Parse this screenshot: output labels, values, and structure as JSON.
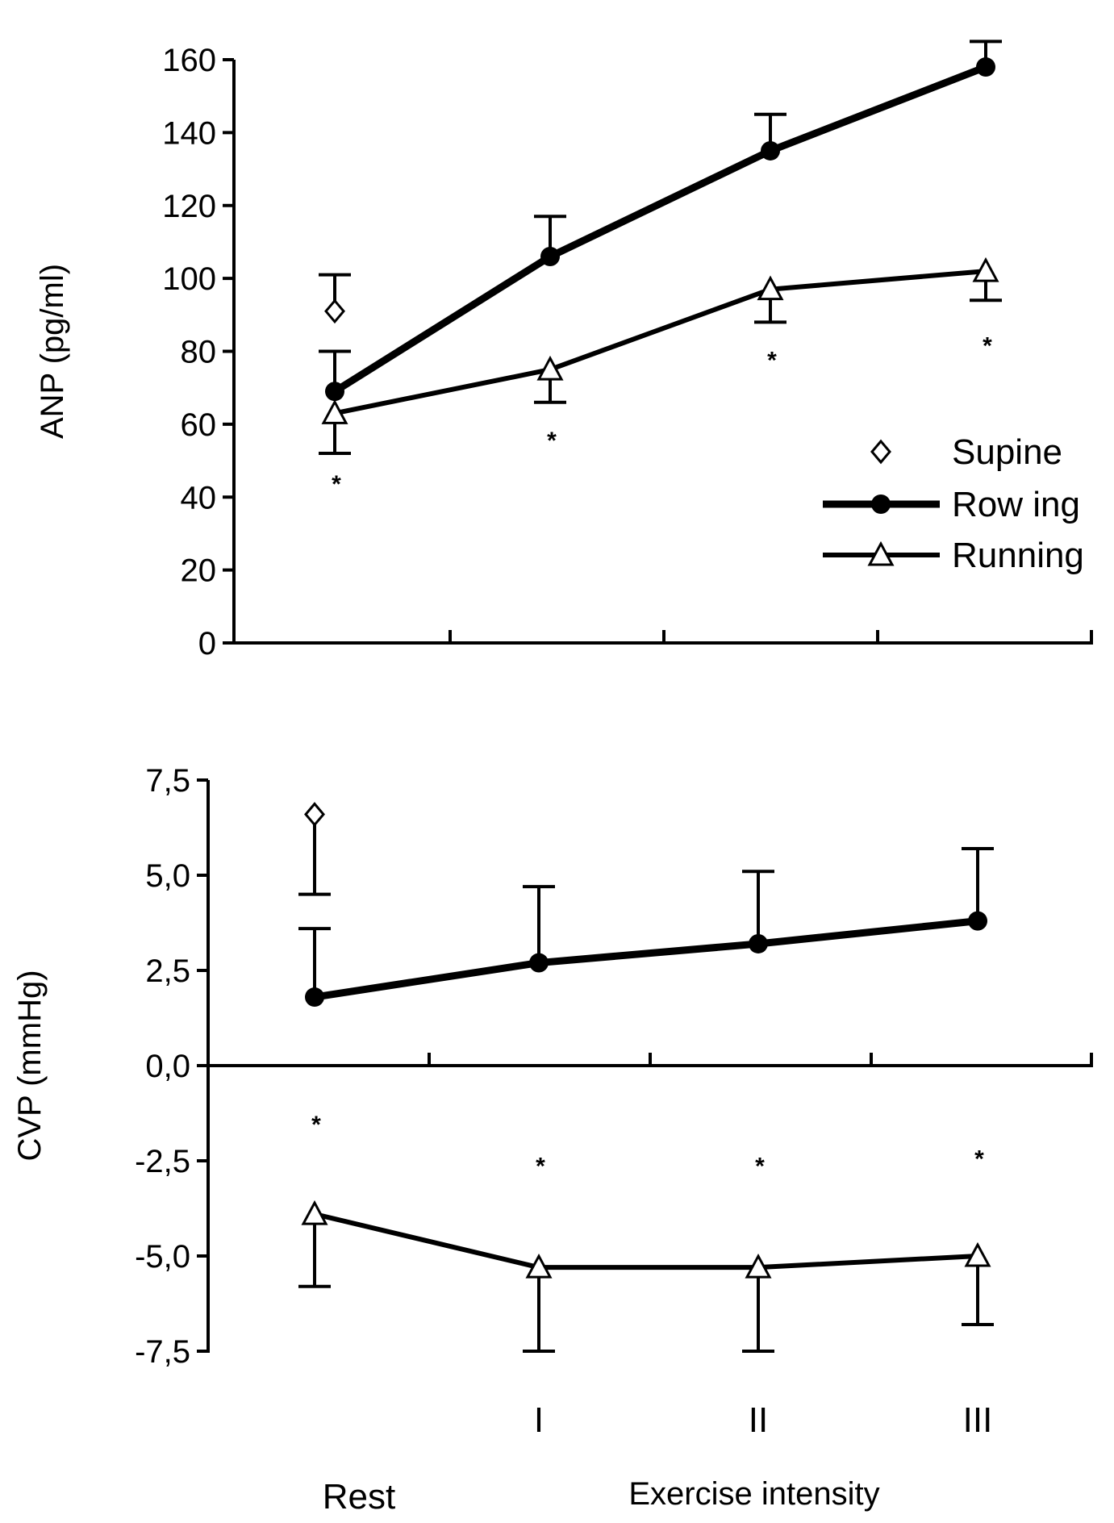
{
  "chart_data": [
    {
      "type": "line",
      "ylabel": "ANP (pg/ml)",
      "ylim": [
        0,
        160
      ],
      "yticks": [
        "0",
        "20",
        "40",
        "60",
        "80",
        "100",
        "120",
        "140",
        "160"
      ],
      "categories": [
        "Rest",
        "I",
        "II",
        "III"
      ],
      "legend": {
        "placement": "right",
        "entries": [
          "Supine",
          "Row ing",
          "Running"
        ]
      },
      "series": [
        {
          "name": "Supine",
          "marker": "open-diamond",
          "line": false,
          "values": [
            91,
            null,
            null,
            null
          ],
          "error_low": [
            null,
            null,
            null,
            null
          ],
          "error_high": [
            101,
            null,
            null,
            null
          ]
        },
        {
          "name": "Row ing",
          "marker": "filled-circle",
          "line": true,
          "values": [
            69,
            106,
            135,
            158
          ],
          "error_low": [
            null,
            null,
            null,
            null
          ],
          "error_high": [
            80,
            117,
            145,
            165
          ]
        },
        {
          "name": "Running",
          "marker": "open-triangle",
          "line": true,
          "values": [
            63,
            75,
            97,
            102
          ],
          "error_low": [
            52,
            66,
            88,
            94
          ],
          "error_high": [
            null,
            null,
            null,
            null
          ]
        }
      ],
      "annotations": [
        {
          "text": "*",
          "x": "Rest",
          "y": 44
        },
        {
          "text": "*",
          "x": "I",
          "y": 56
        },
        {
          "text": "*",
          "x": "II",
          "y": 78
        },
        {
          "text": "*",
          "x": "III",
          "y": 82
        }
      ]
    },
    {
      "type": "line",
      "ylabel": "CVP (mmHg)",
      "xlabel": "Exercise intensity",
      "ylim": [
        -7.5,
        7.5
      ],
      "yticks": [
        "-7,5",
        "-5,0",
        "-2,5",
        "0,0",
        "2,5",
        "5,0",
        "7,5"
      ],
      "categories": [
        "Rest",
        "I",
        "II",
        "III"
      ],
      "series": [
        {
          "name": "Supine",
          "marker": "open-diamond",
          "line": false,
          "values": [
            6.6,
            null,
            null,
            null
          ],
          "error_low": [
            4.5,
            null,
            null,
            null
          ],
          "error_high": [
            null,
            null,
            null,
            null
          ]
        },
        {
          "name": "Row ing",
          "marker": "filled-circle",
          "line": true,
          "values": [
            1.8,
            2.7,
            3.2,
            3.8
          ],
          "error_low": [
            null,
            null,
            null,
            null
          ],
          "error_high": [
            3.6,
            4.7,
            5.1,
            5.7
          ]
        },
        {
          "name": "Running",
          "marker": "open-triangle",
          "line": true,
          "values": [
            -3.9,
            -5.3,
            -5.3,
            -5.0
          ],
          "error_low": [
            -5.8,
            -7.5,
            -7.5,
            -6.8
          ],
          "error_high": [
            null,
            null,
            null,
            null
          ]
        }
      ],
      "annotations": [
        {
          "text": "*",
          "x": "Rest",
          "y": -1.5
        },
        {
          "text": "*",
          "x": "I",
          "y": -2.6
        },
        {
          "text": "*",
          "x": "II",
          "y": -2.6
        },
        {
          "text": "*",
          "x": "III",
          "y": -2.4
        }
      ]
    }
  ]
}
